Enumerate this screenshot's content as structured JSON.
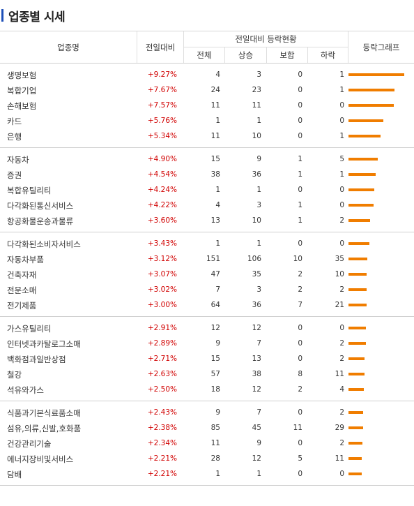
{
  "page": {
    "title": "업종별 시세"
  },
  "header": {
    "name": "업종명",
    "change": "전일대비",
    "group_title": "전일대비 등락현황",
    "total": "전체",
    "up": "상승",
    "flat": "보합",
    "down": "하락",
    "graph": "등락그래프"
  },
  "colors": {
    "accent": "#1d4fb8",
    "up_text": "#d10000",
    "bar": "#f07d00"
  },
  "groups": [
    {
      "rows": [
        {
          "name": "생명보험",
          "change": "+9.27%",
          "total": "4",
          "up": "3",
          "flat": "0",
          "down": "1",
          "rate": 9.27
        },
        {
          "name": "복합기업",
          "change": "+7.67%",
          "total": "24",
          "up": "23",
          "flat": "0",
          "down": "1",
          "rate": 7.67
        },
        {
          "name": "손해보험",
          "change": "+7.57%",
          "total": "11",
          "up": "11",
          "flat": "0",
          "down": "0",
          "rate": 7.57
        },
        {
          "name": "카드",
          "change": "+5.76%",
          "total": "1",
          "up": "1",
          "flat": "0",
          "down": "0",
          "rate": 5.76
        },
        {
          "name": "은행",
          "change": "+5.34%",
          "total": "11",
          "up": "10",
          "flat": "0",
          "down": "1",
          "rate": 5.34
        }
      ]
    },
    {
      "rows": [
        {
          "name": "자동차",
          "change": "+4.90%",
          "total": "15",
          "up": "9",
          "flat": "1",
          "down": "5",
          "rate": 4.9
        },
        {
          "name": "증권",
          "change": "+4.54%",
          "total": "38",
          "up": "36",
          "flat": "1",
          "down": "1",
          "rate": 4.54
        },
        {
          "name": "복합유틸리티",
          "change": "+4.24%",
          "total": "1",
          "up": "1",
          "flat": "0",
          "down": "0",
          "rate": 4.24
        },
        {
          "name": "다각화된통신서비스",
          "change": "+4.22%",
          "total": "4",
          "up": "3",
          "flat": "1",
          "down": "0",
          "rate": 4.22
        },
        {
          "name": "항공화물운송과물류",
          "change": "+3.60%",
          "total": "13",
          "up": "10",
          "flat": "1",
          "down": "2",
          "rate": 3.6
        }
      ]
    },
    {
      "rows": [
        {
          "name": "다각화된소비자서비스",
          "change": "+3.43%",
          "total": "1",
          "up": "1",
          "flat": "0",
          "down": "0",
          "rate": 3.43
        },
        {
          "name": "자동차부품",
          "change": "+3.12%",
          "total": "151",
          "up": "106",
          "flat": "10",
          "down": "35",
          "rate": 3.12
        },
        {
          "name": "건축자재",
          "change": "+3.07%",
          "total": "47",
          "up": "35",
          "flat": "2",
          "down": "10",
          "rate": 3.07
        },
        {
          "name": "전문소매",
          "change": "+3.02%",
          "total": "7",
          "up": "3",
          "flat": "2",
          "down": "2",
          "rate": 3.02
        },
        {
          "name": "전기제품",
          "change": "+3.00%",
          "total": "64",
          "up": "36",
          "flat": "7",
          "down": "21",
          "rate": 3.0
        }
      ]
    },
    {
      "rows": [
        {
          "name": "가스유틸리티",
          "change": "+2.91%",
          "total": "12",
          "up": "12",
          "flat": "0",
          "down": "0",
          "rate": 2.91
        },
        {
          "name": "인터넷과카탈로그소매",
          "change": "+2.89%",
          "total": "9",
          "up": "7",
          "flat": "0",
          "down": "2",
          "rate": 2.89
        },
        {
          "name": "백화점과일반상점",
          "change": "+2.71%",
          "total": "15",
          "up": "13",
          "flat": "0",
          "down": "2",
          "rate": 2.71
        },
        {
          "name": "철강",
          "change": "+2.63%",
          "total": "57",
          "up": "38",
          "flat": "8",
          "down": "11",
          "rate": 2.63
        },
        {
          "name": "석유와가스",
          "change": "+2.50%",
          "total": "18",
          "up": "12",
          "flat": "2",
          "down": "4",
          "rate": 2.5
        }
      ]
    },
    {
      "rows": [
        {
          "name": "식품과기본식료품소매",
          "change": "+2.43%",
          "total": "9",
          "up": "7",
          "flat": "0",
          "down": "2",
          "rate": 2.43
        },
        {
          "name": "섬유,의류,신발,호화품",
          "change": "+2.38%",
          "total": "85",
          "up": "45",
          "flat": "11",
          "down": "29",
          "rate": 2.38
        },
        {
          "name": "건강관리기술",
          "change": "+2.34%",
          "total": "11",
          "up": "9",
          "flat": "0",
          "down": "2",
          "rate": 2.34
        },
        {
          "name": "에너지장비및서비스",
          "change": "+2.21%",
          "total": "28",
          "up": "12",
          "flat": "5",
          "down": "11",
          "rate": 2.21
        },
        {
          "name": "담배",
          "change": "+2.21%",
          "total": "1",
          "up": "1",
          "flat": "0",
          "down": "0",
          "rate": 2.21
        }
      ]
    }
  ]
}
